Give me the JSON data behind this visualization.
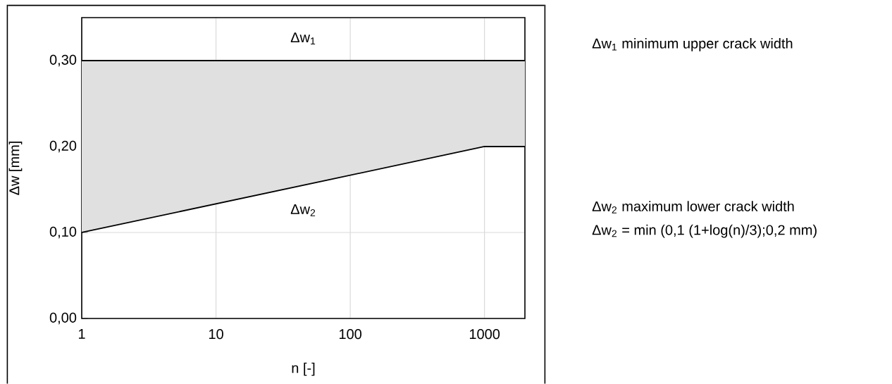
{
  "chart_data": {
    "type": "line",
    "xlabel": "n [-]",
    "ylabel": "Δw [mm]",
    "log": "x",
    "grid": true,
    "marker": "none",
    "xlim": [
      1,
      2000
    ],
    "xticks": [
      1,
      10,
      100,
      1000
    ],
    "ylim": [
      0,
      0.35
    ],
    "yticks": [
      {
        "value": 0,
        "label": "0,00"
      },
      {
        "value": 0.1,
        "label": "0,10"
      },
      {
        "value": 0.2,
        "label": "0,20"
      },
      {
        "value": 0.3,
        "label": "0,30"
      }
    ],
    "series": [
      {
        "name": "Δw$_{1}$",
        "color": "#000000",
        "x": [
          1,
          2000
        ],
        "values": [
          0.3,
          0.3
        ]
      },
      {
        "name": "Δw$_{2}$",
        "color": "#000000",
        "x": [
          1,
          1000,
          2000
        ],
        "values": [
          0.1,
          0.2,
          0.2
        ],
        "lower": [
          0.1,
          0.2,
          0.2
        ],
        "upper": [
          0.3,
          0.3,
          0.3
        ]
      }
    ],
    "annotations": [
      "Δw$_{1}$  minimum upper crack width",
      "Δw$_{2}$  maximum lower crack width",
      "Δw$_{2}$ = min (0,1 (1+log(n)/3);0,2 mm)"
    ]
  }
}
